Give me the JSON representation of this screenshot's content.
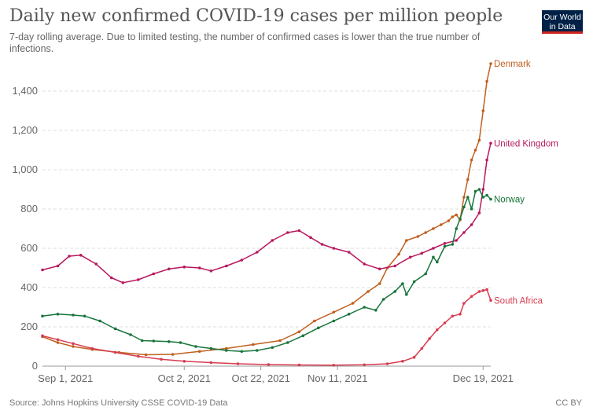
{
  "header": {
    "title": "Daily new confirmed COVID-19 cases per million people",
    "subtitle": "7-day rolling average. Due to limited testing, the number of confirmed cases is lower than the true number of infections."
  },
  "logo": {
    "line1": "Our World",
    "line2": "in Data",
    "bg_color": "#002147",
    "bar_color": "#ce261e"
  },
  "footer": {
    "source": "Source: Johns Hopkins University CSSE COVID-19 Data",
    "license": "CC BY"
  },
  "chart_data": {
    "type": "line",
    "title": "Daily new confirmed COVID-19 cases per million people",
    "subtitle": "7-day rolling average. Due to limited testing, the number of confirmed cases is lower than the true number of infections.",
    "xlabel": "",
    "ylabel": "",
    "x_range": [
      "2021-08-26",
      "2021-12-21"
    ],
    "ylim": [
      0,
      1600
    ],
    "y_ticks": [
      0,
      200,
      400,
      600,
      800,
      1000,
      1200,
      1400
    ],
    "y_tick_labels": [
      "0",
      "200",
      "400",
      "600",
      "800",
      "1,000",
      "1,200",
      "1,400"
    ],
    "x_ticks": [
      "2021-09-01",
      "2021-10-02",
      "2021-10-22",
      "2021-11-11",
      "2021-12-19"
    ],
    "x_tick_labels": [
      "Sep 1, 2021",
      "Oct 2, 2021",
      "Oct 22, 2021",
      "Nov 11, 2021",
      "Dec 19, 2021"
    ],
    "grid": "horizontal dashed",
    "legend": "inline labels at line ends (right)",
    "series": [
      {
        "name": "Denmark",
        "color": "#c15f1f",
        "points": [
          [
            "2021-08-26",
            150
          ],
          [
            "2021-08-30",
            120
          ],
          [
            "2021-09-03",
            100
          ],
          [
            "2021-09-08",
            85
          ],
          [
            "2021-09-15",
            70
          ],
          [
            "2021-09-22",
            58
          ],
          [
            "2021-09-29",
            60
          ],
          [
            "2021-10-06",
            75
          ],
          [
            "2021-10-13",
            90
          ],
          [
            "2021-10-20",
            110
          ],
          [
            "2021-10-27",
            130
          ],
          [
            "2021-11-01",
            175
          ],
          [
            "2021-11-05",
            230
          ],
          [
            "2021-11-10",
            275
          ],
          [
            "2021-11-15",
            320
          ],
          [
            "2021-11-19",
            380
          ],
          [
            "2021-11-22",
            420
          ],
          [
            "2021-11-24",
            500
          ],
          [
            "2021-11-27",
            570
          ],
          [
            "2021-11-29",
            640
          ],
          [
            "2021-12-02",
            660
          ],
          [
            "2021-12-04",
            680
          ],
          [
            "2021-12-06",
            700
          ],
          [
            "2021-12-08",
            720
          ],
          [
            "2021-12-10",
            740
          ],
          [
            "2021-12-11",
            760
          ],
          [
            "2021-12-12",
            770
          ],
          [
            "2021-12-13",
            745
          ],
          [
            "2021-12-14",
            860
          ],
          [
            "2021-12-15",
            950
          ],
          [
            "2021-12-16",
            1050
          ],
          [
            "2021-12-17",
            1100
          ],
          [
            "2021-12-18",
            1150
          ],
          [
            "2021-12-19",
            1300
          ],
          [
            "2021-12-20",
            1450
          ],
          [
            "2021-12-21",
            1540
          ]
        ]
      },
      {
        "name": "United Kingdom",
        "color": "#b8185e",
        "points": [
          [
            "2021-08-26",
            490
          ],
          [
            "2021-08-30",
            510
          ],
          [
            "2021-09-02",
            560
          ],
          [
            "2021-09-05",
            565
          ],
          [
            "2021-09-09",
            520
          ],
          [
            "2021-09-13",
            450
          ],
          [
            "2021-09-16",
            425
          ],
          [
            "2021-09-20",
            440
          ],
          [
            "2021-09-24",
            470
          ],
          [
            "2021-09-28",
            495
          ],
          [
            "2021-10-02",
            505
          ],
          [
            "2021-10-06",
            500
          ],
          [
            "2021-10-09",
            485
          ],
          [
            "2021-10-13",
            510
          ],
          [
            "2021-10-17",
            540
          ],
          [
            "2021-10-21",
            580
          ],
          [
            "2021-10-25",
            640
          ],
          [
            "2021-10-29",
            680
          ],
          [
            "2021-11-01",
            690
          ],
          [
            "2021-11-04",
            655
          ],
          [
            "2021-11-07",
            620
          ],
          [
            "2021-11-10",
            600
          ],
          [
            "2021-11-14",
            580
          ],
          [
            "2021-11-18",
            520
          ],
          [
            "2021-11-22",
            495
          ],
          [
            "2021-11-26",
            510
          ],
          [
            "2021-11-30",
            555
          ],
          [
            "2021-12-03",
            575
          ],
          [
            "2021-12-06",
            600
          ],
          [
            "2021-12-09",
            625
          ],
          [
            "2021-12-12",
            640
          ],
          [
            "2021-12-14",
            680
          ],
          [
            "2021-12-16",
            720
          ],
          [
            "2021-12-18",
            780
          ],
          [
            "2021-12-19",
            900
          ],
          [
            "2021-12-20",
            1050
          ],
          [
            "2021-12-21",
            1135
          ]
        ]
      },
      {
        "name": "Norway",
        "color": "#18753b",
        "points": [
          [
            "2021-08-26",
            255
          ],
          [
            "2021-08-30",
            265
          ],
          [
            "2021-09-03",
            260
          ],
          [
            "2021-09-06",
            255
          ],
          [
            "2021-09-10",
            230
          ],
          [
            "2021-09-14",
            190
          ],
          [
            "2021-09-18",
            160
          ],
          [
            "2021-09-21",
            130
          ],
          [
            "2021-09-24",
            128
          ],
          [
            "2021-09-28",
            125
          ],
          [
            "2021-10-01",
            120
          ],
          [
            "2021-10-05",
            100
          ],
          [
            "2021-10-09",
            90
          ],
          [
            "2021-10-13",
            80
          ],
          [
            "2021-10-17",
            75
          ],
          [
            "2021-10-21",
            80
          ],
          [
            "2021-10-25",
            95
          ],
          [
            "2021-10-29",
            120
          ],
          [
            "2021-11-02",
            155
          ],
          [
            "2021-11-06",
            195
          ],
          [
            "2021-11-10",
            230
          ],
          [
            "2021-11-14",
            265
          ],
          [
            "2021-11-18",
            300
          ],
          [
            "2021-11-21",
            285
          ],
          [
            "2021-11-23",
            340
          ],
          [
            "2021-11-26",
            380
          ],
          [
            "2021-11-28",
            420
          ],
          [
            "2021-11-29",
            365
          ],
          [
            "2021-12-01",
            430
          ],
          [
            "2021-12-04",
            470
          ],
          [
            "2021-12-06",
            555
          ],
          [
            "2021-12-07",
            530
          ],
          [
            "2021-12-09",
            610
          ],
          [
            "2021-12-11",
            620
          ],
          [
            "2021-12-12",
            700
          ],
          [
            "2021-12-13",
            750
          ],
          [
            "2021-12-14",
            810
          ],
          [
            "2021-12-15",
            860
          ],
          [
            "2021-12-16",
            800
          ],
          [
            "2021-12-17",
            890
          ],
          [
            "2021-12-18",
            900
          ],
          [
            "2021-12-19",
            860
          ],
          [
            "2021-12-20",
            870
          ],
          [
            "2021-12-21",
            850
          ]
        ]
      },
      {
        "name": "South Africa",
        "color": "#d73c50",
        "points": [
          [
            "2021-08-26",
            155
          ],
          [
            "2021-08-30",
            135
          ],
          [
            "2021-09-03",
            115
          ],
          [
            "2021-09-08",
            90
          ],
          [
            "2021-09-14",
            70
          ],
          [
            "2021-09-20",
            50
          ],
          [
            "2021-09-26",
            35
          ],
          [
            "2021-10-02",
            25
          ],
          [
            "2021-10-09",
            18
          ],
          [
            "2021-10-16",
            12
          ],
          [
            "2021-10-24",
            8
          ],
          [
            "2021-11-01",
            6
          ],
          [
            "2021-11-10",
            5
          ],
          [
            "2021-11-18",
            7
          ],
          [
            "2021-11-24",
            12
          ],
          [
            "2021-11-28",
            25
          ],
          [
            "2021-12-01",
            45
          ],
          [
            "2021-12-03",
            90
          ],
          [
            "2021-12-05",
            140
          ],
          [
            "2021-12-07",
            185
          ],
          [
            "2021-12-09",
            220
          ],
          [
            "2021-12-11",
            255
          ],
          [
            "2021-12-13",
            265
          ],
          [
            "2021-12-14",
            320
          ],
          [
            "2021-12-16",
            355
          ],
          [
            "2021-12-18",
            380
          ],
          [
            "2021-12-19",
            385
          ],
          [
            "2021-12-20",
            390
          ],
          [
            "2021-12-21",
            335
          ]
        ]
      }
    ]
  }
}
